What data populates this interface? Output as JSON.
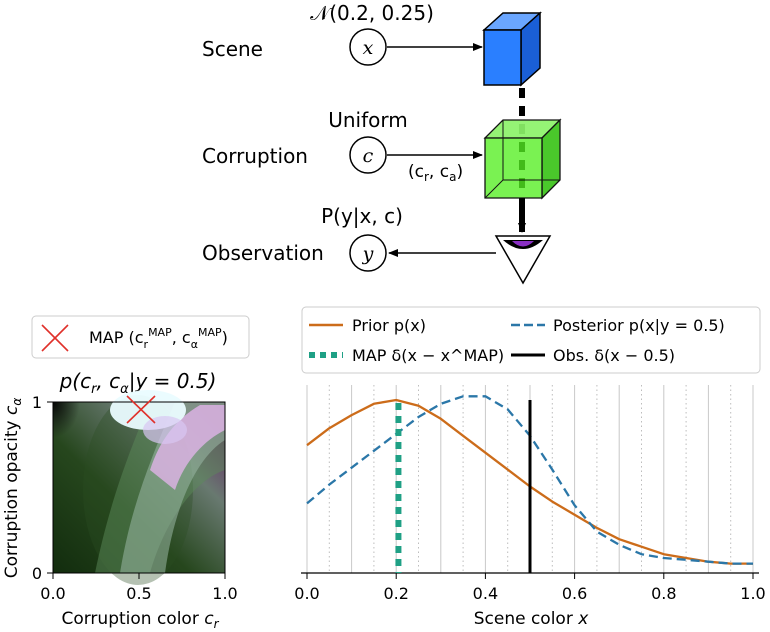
{
  "model": {
    "scene": {
      "label": "Scene",
      "var": "x",
      "prior": "𝒩(0.2, 0.25)"
    },
    "corruption": {
      "label": "Corruption",
      "var": "c",
      "prior": "Uniform",
      "edge_label_open": "(c",
      "edge_sub1": "r",
      "edge_mid": ", c",
      "edge_sub2": "a",
      "edge_label_close": ")"
    },
    "observation": {
      "label": "Observation",
      "var": "y",
      "likelihood": "P(y|x, c)"
    }
  },
  "colors": {
    "scene_cube": "#2a7fff",
    "corruption_cube": "#55ee22",
    "eye_iris": "#8a2fc4",
    "prior_line": "#cc6c1a",
    "posterior_line": "#2b77a8",
    "map_line": "#1fa085",
    "obs_line": "#000000",
    "map_marker": "#e0302a"
  },
  "heatmap": {
    "legend_label": "MAP",
    "title": "p(c_r, c_α|y = 0.5)",
    "xlabel": "Corruption color c_r",
    "ylabel": "Corruption opacity c_α",
    "x_ticks": [
      "0.0",
      "0.5",
      "1.0"
    ],
    "y_ticks": [
      "0",
      "1"
    ],
    "map_point": {
      "cr": 0.5,
      "ca": 0.97
    }
  },
  "chart_data": {
    "type": "line",
    "title": "",
    "xlabel": "Scene color x",
    "ylabel": "",
    "xlim": [
      0,
      1
    ],
    "ylim": [
      0,
      1.0
    ],
    "x_ticks": [
      "0.0",
      "0.2",
      "0.4",
      "0.6",
      "0.8",
      "1.0"
    ],
    "legend": {
      "prior": "Prior p(x)",
      "posterior": "Posterior p(x|y = 0.5)",
      "map": "MAP δ(x − x^MAP)",
      "obs": "Obs. δ(x − 0.5)"
    },
    "x": [
      0.0,
      0.05,
      0.1,
      0.15,
      0.2,
      0.25,
      0.3,
      0.35,
      0.4,
      0.45,
      0.5,
      0.55,
      0.6,
      0.65,
      0.7,
      0.75,
      0.8,
      0.85,
      0.9,
      0.95,
      1.0
    ],
    "series": [
      {
        "name": "Prior p(x)",
        "values": [
          0.68,
          0.77,
          0.84,
          0.9,
          0.92,
          0.89,
          0.82,
          0.73,
          0.64,
          0.55,
          0.46,
          0.38,
          0.31,
          0.24,
          0.18,
          0.14,
          0.1,
          0.08,
          0.06,
          0.05,
          0.05
        ]
      },
      {
        "name": "Posterior p(x|y = 0.5)",
        "values": [
          0.37,
          0.47,
          0.56,
          0.65,
          0.74,
          0.83,
          0.9,
          0.94,
          0.94,
          0.87,
          0.73,
          0.55,
          0.36,
          0.22,
          0.15,
          0.1,
          0.08,
          0.07,
          0.06,
          0.05,
          0.05
        ]
      }
    ],
    "map_x": 0.205,
    "obs_x": 0.5
  }
}
